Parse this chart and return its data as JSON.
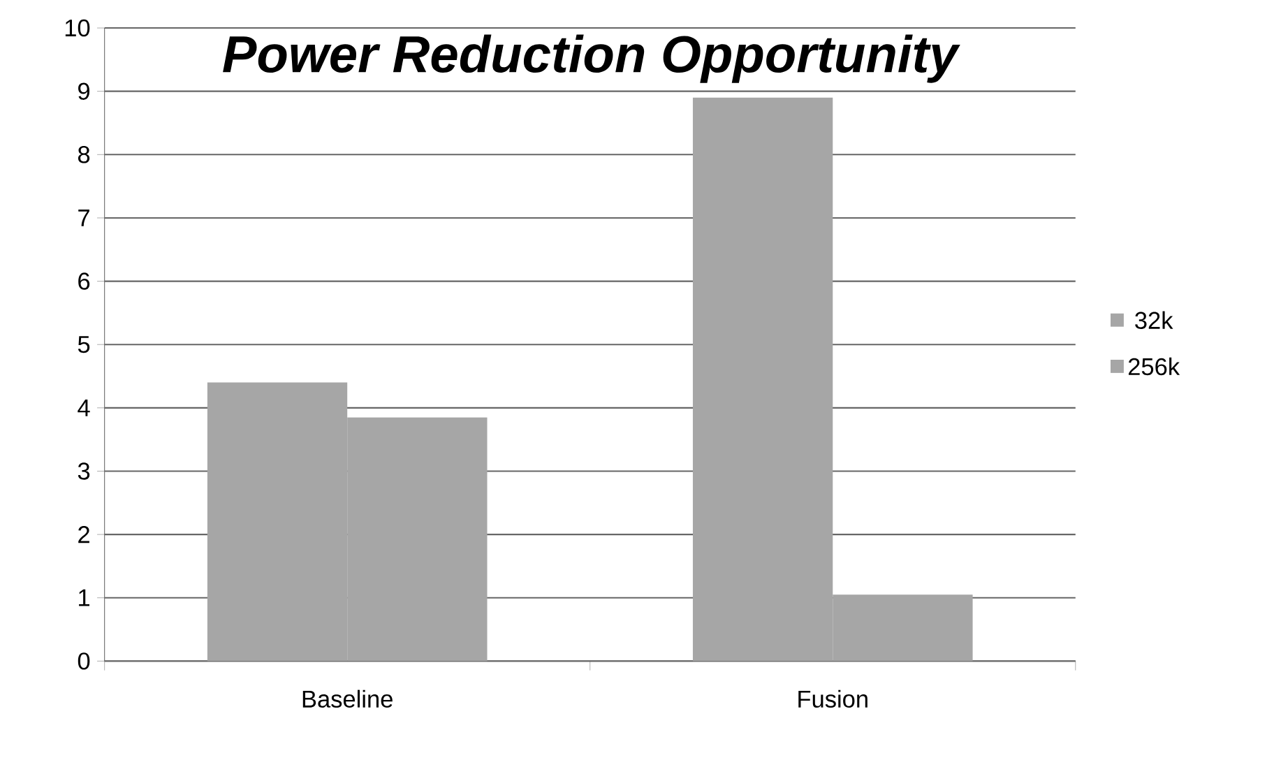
{
  "chart_data": {
    "type": "bar",
    "title": "Power Reduction Opportunity",
    "categories": [
      "Baseline",
      "Fusion"
    ],
    "series": [
      {
        "name": "32k",
        "color": "#a6a6a6",
        "values": [
          4.4,
          8.9
        ]
      },
      {
        "name": "256k",
        "color": "#a6a6a6",
        "values": [
          3.85,
          1.05
        ]
      }
    ],
    "ylim": [
      0,
      10
    ],
    "yticks": [
      0,
      1,
      2,
      3,
      4,
      5,
      6,
      7,
      8,
      9,
      10
    ],
    "grid": "y",
    "legend": "right"
  }
}
